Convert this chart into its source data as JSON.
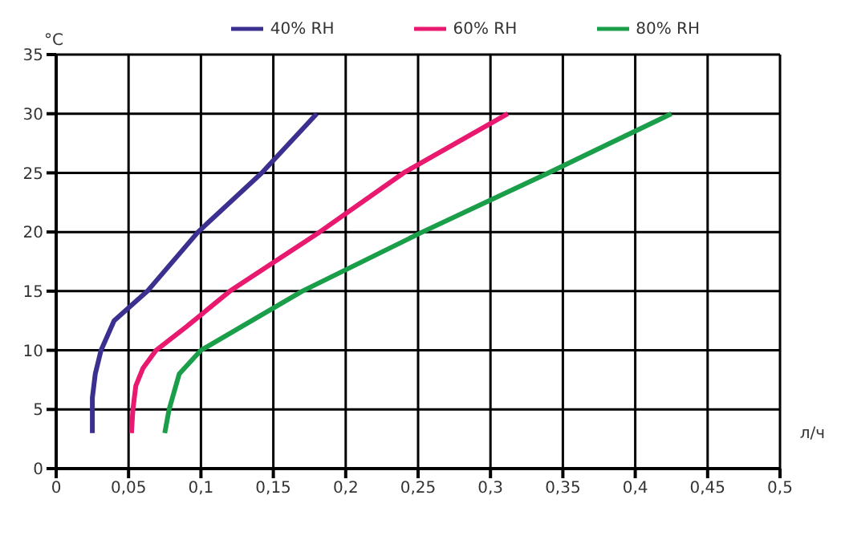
{
  "chart_data": {
    "type": "line",
    "xlabel": "л/ч",
    "ylabel": "°C",
    "xlim": [
      0,
      0.5
    ],
    "xticks": [
      0,
      {
        "value": 0.05,
        "label": "0,05"
      },
      {
        "value": 0.1,
        "label": "0,1"
      },
      {
        "value": 0.15,
        "label": "0,15"
      },
      {
        "value": 0.2,
        "label": "0,2"
      },
      {
        "value": 0.25,
        "label": "0,25"
      },
      {
        "value": 0.3,
        "label": "0,3"
      },
      {
        "value": 0.35,
        "label": "0,35"
      },
      {
        "value": 0.4,
        "label": "0,4"
      },
      {
        "value": 0.45,
        "label": "0,45"
      },
      {
        "value": 0.5,
        "label": "0,5"
      }
    ],
    "ylim": [
      0,
      35
    ],
    "yticks": [
      0,
      5,
      10,
      15,
      20,
      25,
      30,
      35
    ],
    "grid": true,
    "legend": "top right",
    "marker": "none",
    "line_style": "solid",
    "series": [
      {
        "name": "40% RH",
        "color": "#3b2f8f",
        "x": [
          0.025,
          0.025,
          0.027,
          0.031,
          0.04,
          0.063,
          0.098,
          0.142,
          0.18
        ],
        "values": [
          3,
          6,
          8,
          10,
          12.5,
          15,
          20,
          25,
          30
        ]
      },
      {
        "name": "60% RH",
        "color": "#e8196e",
        "x": [
          0.052,
          0.053,
          0.055,
          0.06,
          0.069,
          0.09,
          0.12,
          0.182,
          0.24,
          0.312
        ],
        "values": [
          3,
          5,
          7,
          8.5,
          10,
          12,
          15,
          20,
          25,
          30
        ]
      },
      {
        "name": "80% RH",
        "color": "#1a9e4a",
        "x": [
          0.075,
          0.078,
          0.085,
          0.1,
          0.17,
          0.253,
          0.34,
          0.425
        ],
        "values": [
          3,
          5,
          8,
          10,
          15,
          20,
          25,
          30
        ]
      }
    ]
  }
}
